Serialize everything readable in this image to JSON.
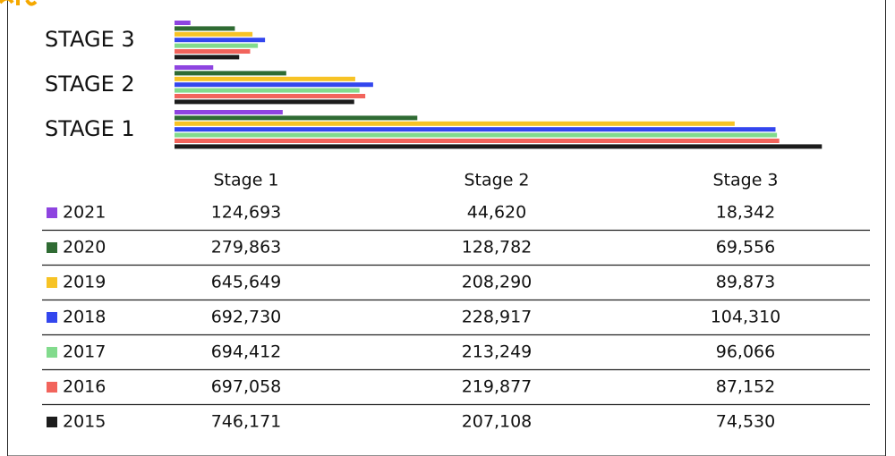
{
  "chart_data": {
    "type": "bar",
    "orientation": "horizontal",
    "categories": [
      "STAGE 1",
      "STAGE 2",
      "STAGE 3"
    ],
    "table_headers": [
      "Stage 1",
      "Stage 2",
      "Stage 3"
    ],
    "xlim": [
      0,
      750000
    ],
    "series": [
      {
        "name": "2021",
        "color": "#8e44e0",
        "values": [
          124693,
          44620,
          18342
        ],
        "value_labels": [
          "124,693",
          "44,620",
          "18,342"
        ]
      },
      {
        "name": "2020",
        "color": "#2f6b33",
        "values": [
          279863,
          128782,
          69556
        ],
        "value_labels": [
          "279,863",
          "128,782",
          "69,556"
        ]
      },
      {
        "name": "2019",
        "color": "#f7c325",
        "values": [
          645649,
          208290,
          89873
        ],
        "value_labels": [
          "645,649",
          "208,290",
          "89,873"
        ]
      },
      {
        "name": "2018",
        "color": "#3346ee",
        "values": [
          692730,
          228917,
          104310
        ],
        "value_labels": [
          "692,730",
          "228,917",
          "104,310"
        ]
      },
      {
        "name": "2017",
        "color": "#82db8d",
        "values": [
          694412,
          213249,
          96066
        ],
        "value_labels": [
          "694,412",
          "213,249",
          "96,066"
        ]
      },
      {
        "name": "2016",
        "color": "#f2645c",
        "values": [
          697058,
          219877,
          87152
        ],
        "value_labels": [
          "697,058",
          "219,877",
          "87,152"
        ]
      },
      {
        "name": "2015",
        "color": "#1c1c1c",
        "values": [
          746171,
          207108,
          74530
        ],
        "value_labels": [
          "746,171",
          "207,108",
          "74,530"
        ]
      }
    ]
  }
}
